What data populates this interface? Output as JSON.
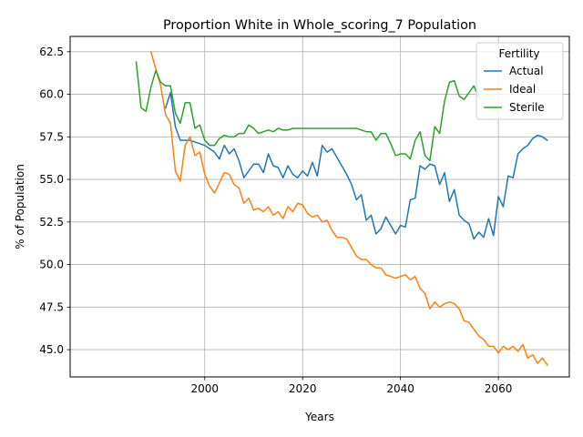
{
  "chart_data": {
    "type": "line",
    "title": "Proportion White in Whole_scoring_7 Population",
    "xlabel": "Years",
    "ylabel": "% of Population",
    "xlim": [
      1972.5,
      2074.5
    ],
    "ylim": [
      43.4,
      63.4
    ],
    "grid": true,
    "x_ticks": [
      2000,
      2020,
      2040,
      2060
    ],
    "y_ticks": [
      45.0,
      47.5,
      50.0,
      52.5,
      55.0,
      57.5,
      60.0,
      62.5
    ],
    "x_tick_labels": [
      "2000",
      "2020",
      "2040",
      "2060"
    ],
    "y_tick_labels": [
      "45.0",
      "47.5",
      "50.0",
      "52.5",
      "55.0",
      "57.5",
      "60.0",
      "62.5"
    ],
    "legend": {
      "title": "Fertility",
      "position": "top-right"
    },
    "series": [
      {
        "name": "Actual",
        "color": "#1f77b4",
        "x": [
          1992,
          1993,
          1994,
          1995,
          1996,
          1997,
          1998,
          1999,
          2000,
          2001,
          2002,
          2003,
          2004,
          2005,
          2006,
          2007,
          2008,
          2009,
          2010,
          2011,
          2012,
          2013,
          2014,
          2015,
          2016,
          2017,
          2018,
          2019,
          2020,
          2021,
          2022,
          2023,
          2024,
          2025,
          2026,
          2027,
          2028,
          2029,
          2030,
          2031,
          2032,
          2033,
          2034,
          2035,
          2036,
          2037,
          2038,
          2039,
          2040,
          2041,
          2042,
          2043,
          2044,
          2045,
          2046,
          2047,
          2048,
          2049,
          2050,
          2051,
          2052,
          2053,
          2054,
          2055,
          2056,
          2057,
          2058,
          2059,
          2060,
          2061,
          2062,
          2063,
          2064,
          2065,
          2066,
          2067,
          2068,
          2069,
          2070
        ],
        "y": [
          59.2,
          60.1,
          58.1,
          57.3,
          57.3,
          57.3,
          57.2,
          57.1,
          57.0,
          56.8,
          56.6,
          56.2,
          57.0,
          56.5,
          56.8,
          56.1,
          55.1,
          55.5,
          55.9,
          55.9,
          55.4,
          56.5,
          55.8,
          55.7,
          55.1,
          55.8,
          55.3,
          55.1,
          55.5,
          55.2,
          56.0,
          55.2,
          57.0,
          56.6,
          56.8,
          56.3,
          55.8,
          55.3,
          54.7,
          53.8,
          54.1,
          52.6,
          52.9,
          51.8,
          52.1,
          52.8,
          52.3,
          51.8,
          52.3,
          52.2,
          53.8,
          53.9,
          55.8,
          55.6,
          55.9,
          55.8,
          54.7,
          55.4,
          53.7,
          54.4,
          52.9,
          52.6,
          52.4,
          51.5,
          51.9,
          51.6,
          52.7,
          51.7,
          54.0,
          53.4,
          55.2,
          55.1,
          56.5,
          56.8,
          57.0,
          57.4,
          57.6,
          57.5,
          57.3
        ]
      },
      {
        "name": "Ideal",
        "color": "#ff7f0e",
        "x": [
          1989,
          1990,
          1991,
          1992,
          1993,
          1994,
          1995,
          1996,
          1997,
          1998,
          1999,
          2000,
          2001,
          2002,
          2003,
          2004,
          2005,
          2006,
          2007,
          2008,
          2009,
          2010,
          2011,
          2012,
          2013,
          2014,
          2015,
          2016,
          2017,
          2018,
          2019,
          2020,
          2021,
          2022,
          2023,
          2024,
          2025,
          2026,
          2027,
          2028,
          2029,
          2030,
          2031,
          2032,
          2033,
          2034,
          2035,
          2036,
          2037,
          2038,
          2039,
          2040,
          2041,
          2042,
          2043,
          2044,
          2045,
          2046,
          2047,
          2048,
          2049,
          2050,
          2051,
          2052,
          2053,
          2054,
          2055,
          2056,
          2057,
          2058,
          2059,
          2060,
          2061,
          2062,
          2063,
          2064,
          2065,
          2066,
          2067,
          2068,
          2069,
          2070
        ],
        "y": [
          62.5,
          61.5,
          60.5,
          58.8,
          58.3,
          55.5,
          54.9,
          57.0,
          57.5,
          56.4,
          56.6,
          55.3,
          54.6,
          54.2,
          54.8,
          55.4,
          55.3,
          54.7,
          54.5,
          53.6,
          53.9,
          53.2,
          53.3,
          53.1,
          53.4,
          52.9,
          53.1,
          52.7,
          53.4,
          53.1,
          53.6,
          53.5,
          53.0,
          52.8,
          52.9,
          52.5,
          52.6,
          52.0,
          51.6,
          51.6,
          51.5,
          51.0,
          50.5,
          50.3,
          50.3,
          50.0,
          49.8,
          49.8,
          49.4,
          49.3,
          49.2,
          49.3,
          49.4,
          49.1,
          49.3,
          48.6,
          48.3,
          47.4,
          47.8,
          47.5,
          47.7,
          47.8,
          47.7,
          47.4,
          46.7,
          46.6,
          46.2,
          45.8,
          45.6,
          45.2,
          45.2,
          44.8,
          45.2,
          45.0,
          45.2,
          44.9,
          45.3,
          44.5,
          44.7,
          44.2,
          44.5,
          44.1
        ]
      },
      {
        "name": "Sterile",
        "color": "#2ca02c",
        "x": [
          1986,
          1987,
          1988,
          1989,
          1990,
          1991,
          1992,
          1993,
          1994,
          1995,
          1996,
          1997,
          1998,
          1999,
          2000,
          2001,
          2002,
          2003,
          2004,
          2005,
          2006,
          2007,
          2008,
          2009,
          2010,
          2011,
          2012,
          2013,
          2014,
          2015,
          2016,
          2017,
          2018,
          2019,
          2020,
          2021,
          2022,
          2023,
          2024,
          2025,
          2026,
          2027,
          2028,
          2029,
          2030,
          2031,
          2032,
          2033,
          2034,
          2035,
          2036,
          2037,
          2038,
          2039,
          2040,
          2041,
          2042,
          2043,
          2044,
          2045,
          2046,
          2047,
          2048,
          2049,
          2050,
          2051,
          2052,
          2053,
          2054,
          2055,
          2056
        ],
        "y": [
          61.9,
          59.2,
          59.0,
          60.4,
          61.4,
          60.7,
          60.5,
          60.5,
          58.9,
          58.3,
          59.5,
          59.5,
          58.0,
          58.2,
          57.3,
          57.0,
          57.0,
          57.4,
          57.6,
          57.5,
          57.5,
          57.7,
          57.7,
          58.2,
          58.0,
          57.7,
          57.8,
          57.9,
          57.8,
          58.0,
          57.9,
          57.9,
          58.0,
          58.0,
          58.0,
          58.0,
          58.0,
          58.0,
          58.0,
          58.0,
          58.0,
          58.0,
          58.0,
          58.0,
          58.0,
          58.0,
          57.9,
          57.8,
          57.8,
          57.3,
          57.7,
          57.7,
          57.1,
          56.4,
          56.5,
          56.5,
          56.2,
          57.3,
          57.8,
          56.4,
          56.1,
          58.1,
          57.7,
          59.6,
          60.7,
          60.8,
          59.9,
          59.7,
          60.1,
          60.5,
          59.8
        ]
      }
    ]
  }
}
